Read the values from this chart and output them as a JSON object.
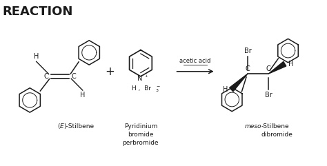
{
  "title": "REACTION",
  "title_fontsize": 13,
  "title_fontweight": "bold",
  "background_color": "#ffffff",
  "text_color": "#1a1a1a",
  "label1_italic": "(E)",
  "label1_rest": "-Stilbene",
  "label2": "Pyridinium\nbromide\nperbromide",
  "label3_italic": "meso",
  "label3_rest": "-Stilbene\ndibromide",
  "arrow_label": "acetic acid",
  "figsize": [
    4.74,
    2.41
  ],
  "dpi": 100
}
